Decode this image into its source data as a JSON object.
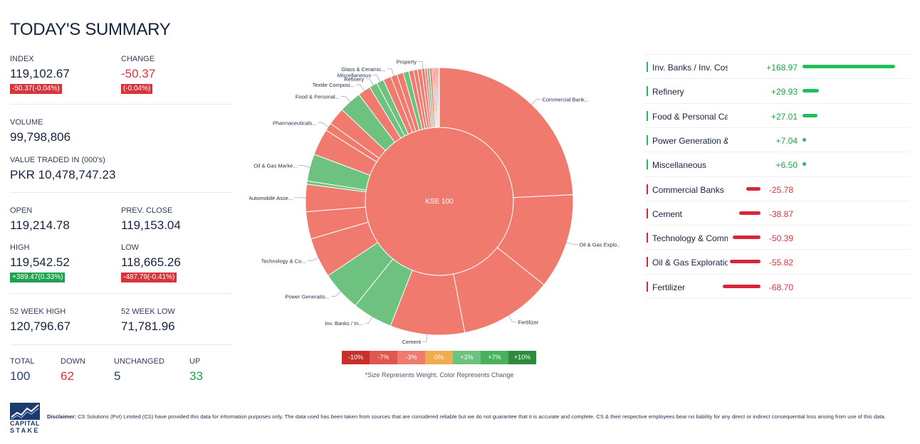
{
  "title": "TODAY'S SUMMARY",
  "stats": {
    "index": {
      "label": "INDEX",
      "value": "119,102.67",
      "badge": "-50.37(-0.04%)"
    },
    "change": {
      "label": "CHANGE",
      "value": "-50.37",
      "badge": "(-0.04%)"
    },
    "volume": {
      "label": "VOLUME",
      "value": "99,798,806"
    },
    "value_traded": {
      "label": "VALUE TRADED IN (000's)",
      "value": "PKR 10,478,747.23"
    },
    "open": {
      "label": "OPEN",
      "value": "119,214.78"
    },
    "prev_close": {
      "label": "PREV. CLOSE",
      "value": "119,153.04"
    },
    "high": {
      "label": "HIGH",
      "value": "119,542.52",
      "badge": "+389.47(0.33%)"
    },
    "low": {
      "label": "LOW",
      "value": "118,665.26",
      "badge": "-487.79(-0.41%)"
    },
    "week52_high": {
      "label": "52 WEEK HIGH",
      "value": "120,796.67"
    },
    "week52_low": {
      "label": "52 WEEK LOW",
      "value": "71,781.96"
    },
    "total": {
      "label": "TOTAL",
      "value": "100"
    },
    "down": {
      "label": "DOWN",
      "value": "62"
    },
    "unchanged": {
      "label": "UNCHANGED",
      "value": "5"
    },
    "up": {
      "label": "UP",
      "value": "33"
    }
  },
  "colors": {
    "red": "#e0323c",
    "green": "#1aa44a",
    "wedge_red": "#ef7a6d",
    "wedge_green": "#6cc27e",
    "bar_green": "#1fbf5a",
    "bar_red": "#d9253a"
  },
  "chart_data": {
    "type": "sunburst",
    "center_label": "KSE 100",
    "note": "*Size Represents Weight. Color Represents Change",
    "legend": [
      {
        "label": "-10%",
        "color": "#c9302c"
      },
      {
        "label": "-7%",
        "color": "#e0574f"
      },
      {
        "label": "-3%",
        "color": "#ef7a6d"
      },
      {
        "label": "0%",
        "color": "#f0ad4e"
      },
      {
        "label": "+3%",
        "color": "#6cc27e"
      },
      {
        "label": "+7%",
        "color": "#47b15e"
      },
      {
        "label": "+10%",
        "color": "#2e8b3e"
      }
    ],
    "sectors": [
      {
        "label": "Commercial Bank...",
        "weight": 25.0,
        "change": "down"
      },
      {
        "label": "Oil & Gas Explo...",
        "weight": 11.9,
        "change": "down"
      },
      {
        "label": "Fertilizer",
        "weight": 11.6,
        "change": "down"
      },
      {
        "label": "Cement",
        "weight": 9.3,
        "change": "down"
      },
      {
        "label": "Inv. Banks / In...",
        "weight": 5.0,
        "change": "up"
      },
      {
        "label": "Power Generatio...",
        "weight": 5.0,
        "change": "up"
      },
      {
        "label": "Technology & Co...",
        "weight": 5.0,
        "change": "down"
      },
      {
        "label": "",
        "weight": 3.4,
        "change": "down"
      },
      {
        "label": "Automobile Asse...",
        "weight": 3.4,
        "change": "down"
      },
      {
        "label": "",
        "weight": 0.4,
        "change": "up"
      },
      {
        "label": "Oil & Gas Marke...",
        "weight": 3.4,
        "change": "up"
      },
      {
        "label": "",
        "weight": 3.3,
        "change": "down"
      },
      {
        "label": "Pharmaceuticals...",
        "weight": 1.0,
        "change": "down"
      },
      {
        "label": "",
        "weight": 2.2,
        "change": "down"
      },
      {
        "label": "Food & Personal...",
        "weight": 2.8,
        "change": "up"
      },
      {
        "label": "Textile Composi...",
        "weight": 1.6,
        "change": "down"
      },
      {
        "label": "Refinery",
        "weight": 1.0,
        "change": "up"
      },
      {
        "label": "Miscellaneous",
        "weight": 0.9,
        "change": "up"
      },
      {
        "label": "",
        "weight": 1.0,
        "change": "down"
      },
      {
        "label": "Glass & Ceramic...",
        "weight": 0.8,
        "change": "down"
      },
      {
        "label": "",
        "weight": 0.8,
        "change": "down"
      },
      {
        "label": "",
        "weight": 0.7,
        "change": "up"
      },
      {
        "label": "",
        "weight": 0.6,
        "change": "down"
      },
      {
        "label": "",
        "weight": 0.5,
        "change": "down"
      },
      {
        "label": "",
        "weight": 0.5,
        "change": "down"
      },
      {
        "label": "Property",
        "weight": 0.4,
        "change": "down"
      },
      {
        "label": "",
        "weight": 0.3,
        "change": "down"
      },
      {
        "label": "",
        "weight": 0.3,
        "change": "up"
      },
      {
        "label": "",
        "weight": 0.3,
        "change": "down"
      },
      {
        "label": "",
        "weight": 0.2,
        "change": "down"
      },
      {
        "label": "",
        "weight": 0.2,
        "change": "down"
      },
      {
        "label": "",
        "weight": 0.2,
        "change": "down"
      },
      {
        "label": "",
        "weight": 0.2,
        "change": "down"
      },
      {
        "label": "",
        "weight": 0.1,
        "change": "down"
      }
    ]
  },
  "sector_table": [
    {
      "name": "Inv. Banks / Inv. Cos.",
      "value": "+168.97",
      "points": 168.97
    },
    {
      "name": "Refinery",
      "value": "+29.93",
      "points": 29.93
    },
    {
      "name": "Food & Personal Car",
      "value": "+27.01",
      "points": 27.01
    },
    {
      "name": "Power Generation &",
      "value": "+7.04",
      "points": 7.04
    },
    {
      "name": "Miscellaneous",
      "value": "+6.50",
      "points": 6.5
    },
    {
      "name": "Commercial Banks",
      "value": "-25.78",
      "points": -25.78
    },
    {
      "name": "Cement",
      "value": "-38.87",
      "points": -38.87
    },
    {
      "name": "Technology & Comm",
      "value": "-50.39",
      "points": -50.39
    },
    {
      "name": "Oil & Gas Exploration",
      "value": "-55.82",
      "points": -55.82
    },
    {
      "name": "Fertilizer",
      "value": "-68.70",
      "points": -68.7
    }
  ],
  "footer": {
    "logo_line1": "CAPITAL",
    "logo_line2": "STAKE",
    "disclaimer_label": "Disclaimer:",
    "disclaimer_text": " CS Solutions (Pvt) Limited (CS) have provided this data for information purposes only. The data used has been taken from sources that are considered reliable but we do not guarantee that it is accurate and complete. CS & their respective employees bear no liability for any direct or indirect consequential loss arising from use of this data."
  }
}
